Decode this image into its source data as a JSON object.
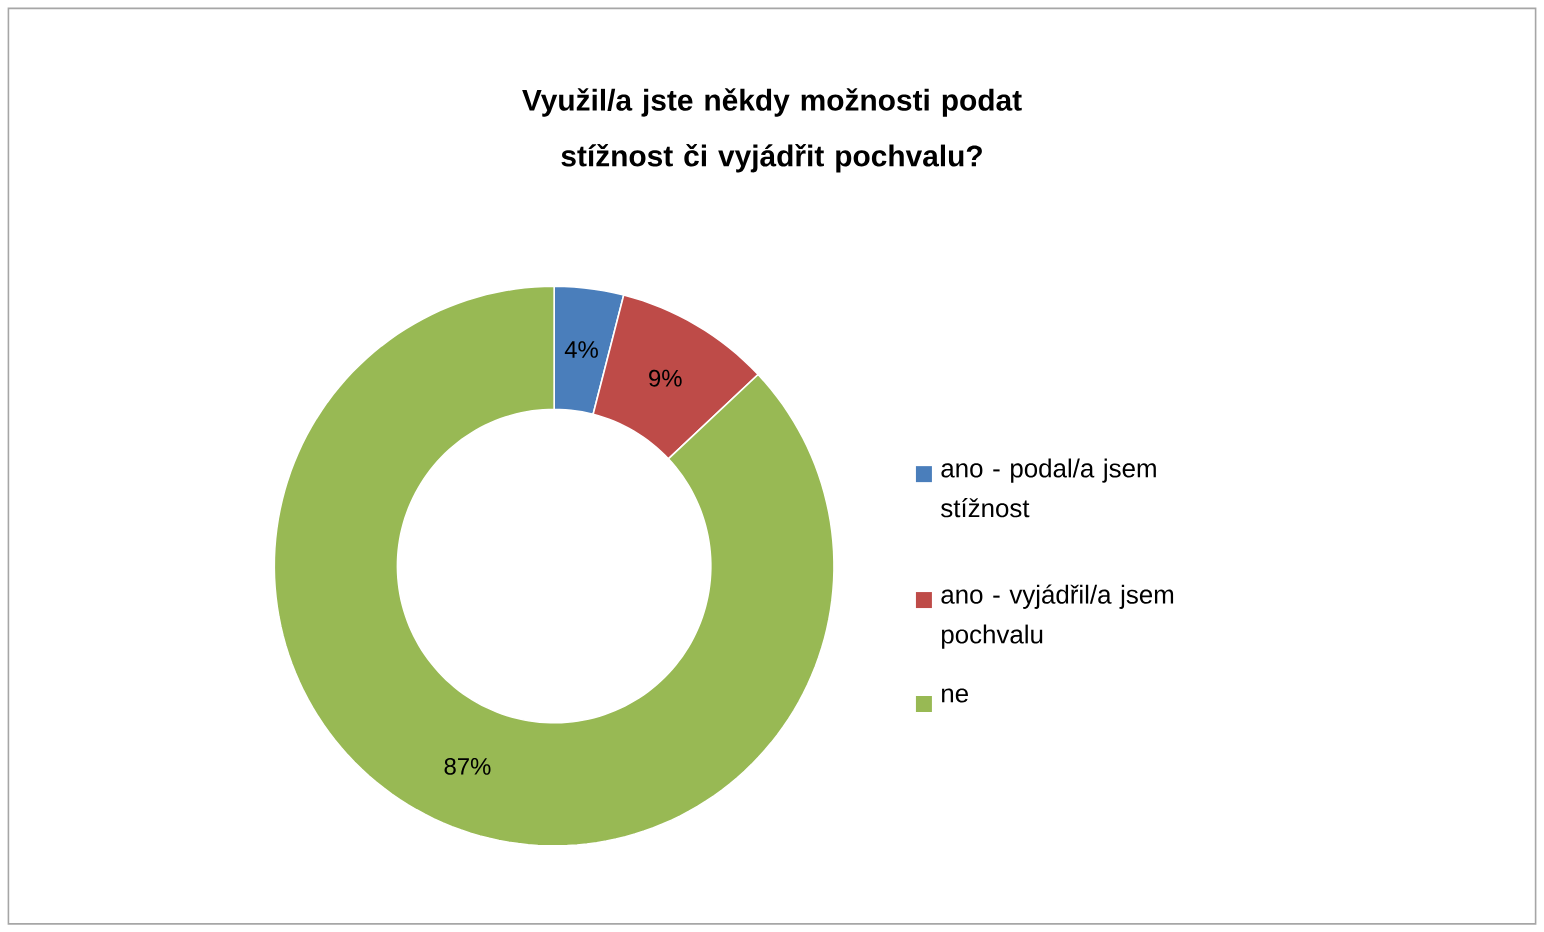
{
  "chart_data": {
    "type": "donut",
    "title": "Využil/a jste někdy možnosti podat stížnost či vyjádřit pochvalu?",
    "categories": [
      "ano - podal/a jsem stížnost",
      "ano - vyjádřil/a jsem pochvalu",
      "ne"
    ],
    "values": [
      4,
      9,
      87
    ],
    "value_labels": [
      "4%",
      "9%",
      "87%"
    ],
    "colors": [
      "#4a7ebb",
      "#be4b48",
      "#98b954"
    ],
    "legend": "right"
  }
}
